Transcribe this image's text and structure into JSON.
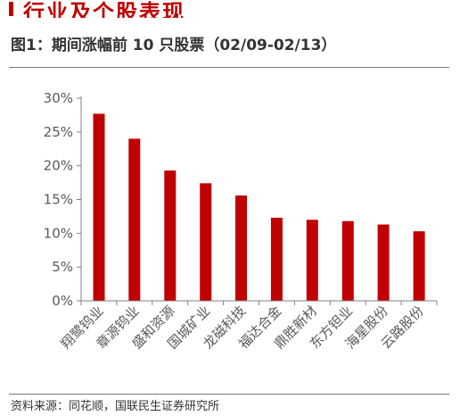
{
  "header": {
    "heading": "行业及个股表现",
    "figure_title": "图1：期间涨幅前 10 只股票（02/09-02/13）",
    "source": "资料来源：同花顺，国联民生证券研究所"
  },
  "colors": {
    "bar": "#c00000",
    "axis": "#808080",
    "accent": "#c00000"
  },
  "chart_data": {
    "type": "bar",
    "title": "",
    "xlabel": "",
    "ylabel": "",
    "categories": [
      "翔鹭钨业",
      "章源钨业",
      "盛和资源",
      "国城矿业",
      "龙磁科技",
      "福达合金",
      "鼎胜新材",
      "东方钽业",
      "海星股份",
      "云路股份"
    ],
    "values": [
      27.7,
      24.0,
      19.3,
      17.4,
      15.6,
      12.3,
      12.0,
      11.8,
      11.3,
      10.3
    ],
    "ylim": [
      0,
      30
    ],
    "yticks": [
      0,
      5,
      10,
      15,
      20,
      25,
      30
    ],
    "ytick_labels": [
      "0%",
      "5%",
      "10%",
      "15%",
      "20%",
      "25%",
      "30%"
    ],
    "grid": false,
    "legend": "none"
  }
}
